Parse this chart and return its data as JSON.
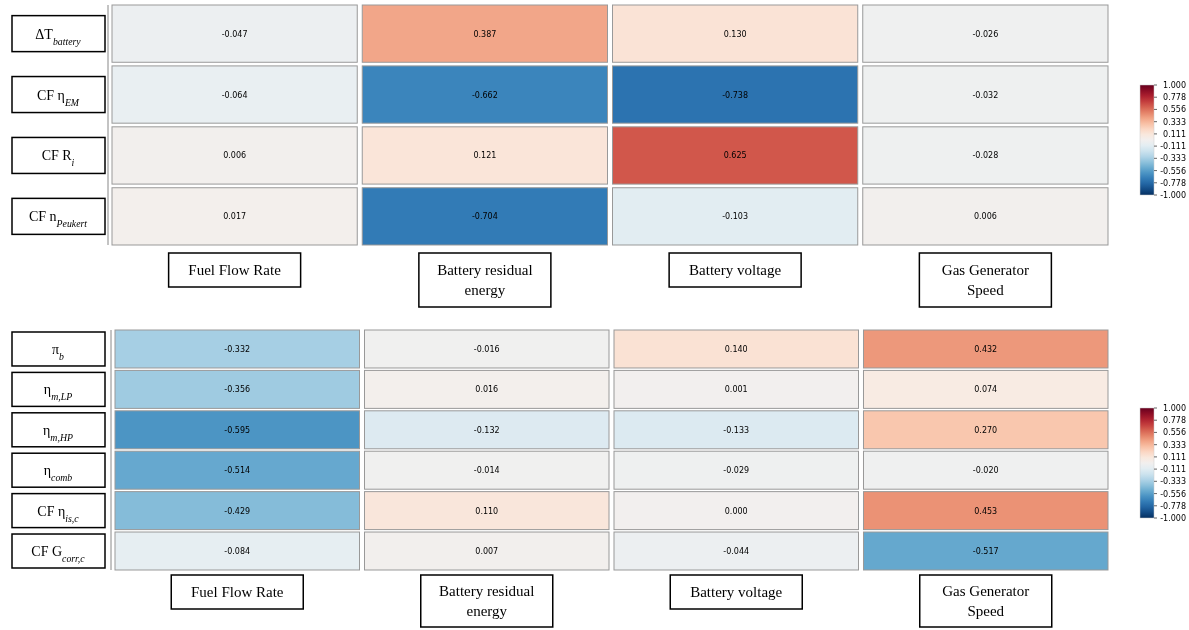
{
  "chart_data": [
    {
      "type": "heatmap",
      "categories": [
        "Fuel Flow Rate",
        "Battery residual energy",
        "Battery voltage",
        "Gas Generator Speed"
      ],
      "y_categories": [
        "ΔT$_{battery}$",
        "CF η$_{EM}$",
        "CF R$_{i}$",
        "CF n$_{Peukert}$"
      ],
      "cells": [
        [
          -0.047,
          0.387,
          0.13,
          -0.026
        ],
        [
          -0.064,
          -0.662,
          -0.738,
          -0.032
        ],
        [
          0.006,
          0.121,
          0.625,
          -0.028
        ],
        [
          0.017,
          -0.704,
          -0.103,
          0.006
        ]
      ],
      "cell_labels": [
        [
          "-0.047",
          "0.387",
          "0.130",
          "-0.026"
        ],
        [
          "-0.064",
          "-0.662",
          "-0.738",
          "-0.032"
        ],
        [
          "0.006",
          "0.121",
          "0.625",
          "-0.028"
        ],
        [
          "0.017",
          "-0.704",
          "-0.103",
          "0.006"
        ]
      ],
      "clim": [
        -1,
        1
      ],
      "cticks": [
        {
          "value": 1,
          "label": "1.000"
        },
        {
          "value": 0.778,
          "label": "0.778"
        },
        {
          "value": 0.556,
          "label": "0.556"
        },
        {
          "value": 0.333,
          "label": "0.333"
        },
        {
          "value": 0.111,
          "label": "0.111"
        },
        {
          "value": -0.111,
          "label": "-0.111"
        },
        {
          "value": -0.333,
          "label": "-0.333"
        },
        {
          "value": -0.556,
          "label": "-0.556"
        },
        {
          "value": -0.778,
          "label": "-0.778"
        },
        {
          "value": -1,
          "label": "-1.000"
        }
      ]
    },
    {
      "type": "heatmap",
      "categories": [
        "Fuel Flow Rate",
        "Battery residual energy",
        "Battery voltage",
        "Gas Generator Speed"
      ],
      "y_categories": [
        "π$_{b}$",
        "η$_{m,LP}$",
        "η$_{m,HP}$",
        "η$_{comb}$",
        "CF η$_{is,c}$",
        "CF G$_{corr,c}$"
      ],
      "cells": [
        [
          -0.332,
          -0.016,
          0.14,
          0.432
        ],
        [
          -0.356,
          0.016,
          0.001,
          0.074
        ],
        [
          -0.595,
          -0.132,
          -0.133,
          0.27
        ],
        [
          -0.514,
          -0.014,
          -0.029,
          -0.02
        ],
        [
          -0.429,
          0.11,
          0.0,
          0.453
        ],
        [
          -0.084,
          0.007,
          -0.044,
          -0.517
        ]
      ],
      "cell_labels": [
        [
          "-0.332",
          "-0.016",
          "0.140",
          "0.432"
        ],
        [
          "-0.356",
          "0.016",
          "0.001",
          "0.074"
        ],
        [
          "-0.595",
          "-0.132",
          "-0.133",
          "0.270"
        ],
        [
          "-0.514",
          "-0.014",
          "-0.029",
          "-0.020"
        ],
        [
          "-0.429",
          "0.110",
          "0.000",
          "0.453"
        ],
        [
          "-0.084",
          "0.007",
          "-0.044",
          "-0.517"
        ]
      ],
      "clim": [
        -1,
        1
      ],
      "cticks": [
        {
          "value": 1,
          "label": "1.000"
        },
        {
          "value": 0.778,
          "label": "0.778"
        },
        {
          "value": 0.556,
          "label": "0.556"
        },
        {
          "value": 0.333,
          "label": "0.333"
        },
        {
          "value": 0.111,
          "label": "0.111"
        },
        {
          "value": -0.111,
          "label": "-0.111"
        },
        {
          "value": -0.333,
          "label": "-0.333"
        },
        {
          "value": -0.556,
          "label": "-0.556"
        },
        {
          "value": -0.778,
          "label": "-0.778"
        },
        {
          "value": -1,
          "label": "-1.000"
        }
      ]
    }
  ]
}
